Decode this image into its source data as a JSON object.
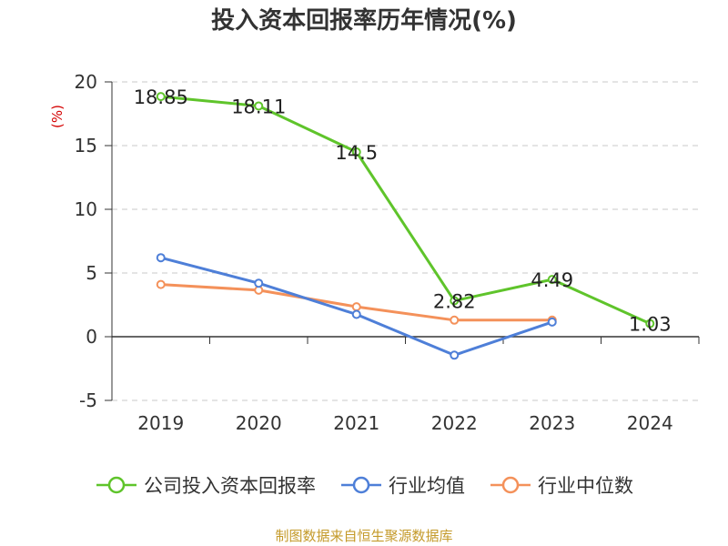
{
  "chart_data": {
    "type": "line",
    "title": "投入资本回报率历年情况(%)",
    "ylabel": "(%)",
    "xlabel": "",
    "categories": [
      "2019",
      "2020",
      "2021",
      "2022",
      "2023",
      "2024"
    ],
    "ylim": [
      -5,
      20
    ],
    "yticks": [
      20,
      15,
      10,
      5,
      0,
      -5
    ],
    "grid": true,
    "legend_position": "bottom",
    "series": [
      {
        "name": "公司投入资本回报率",
        "color": "#5fc42b",
        "values": [
          18.85,
          18.11,
          14.5,
          2.82,
          4.49,
          1.03
        ],
        "labels": [
          "18.85",
          "18.11",
          "14.5",
          "2.82",
          "4.49",
          "1.03"
        ]
      },
      {
        "name": "行业均值",
        "color": "#4e7fd8",
        "values": [
          6.2,
          4.2,
          1.75,
          -1.45,
          1.15,
          null
        ]
      },
      {
        "name": "行业中位数",
        "color": "#f4915a",
        "values": [
          4.1,
          3.65,
          2.35,
          1.3,
          1.3,
          null
        ]
      }
    ]
  },
  "legend": {
    "items": [
      "公司投入资本回报率",
      "行业均值",
      "行业中位数"
    ]
  },
  "source": "制图数据来自恒生聚源数据库"
}
